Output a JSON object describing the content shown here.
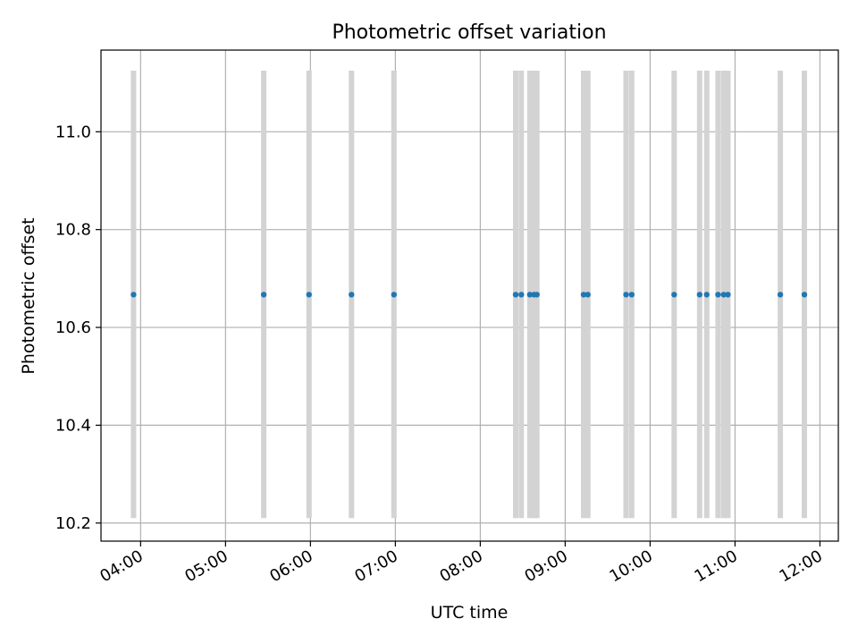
{
  "chart_data": {
    "type": "scatter",
    "title": "Photometric offset variation",
    "xlabel": "UTC time",
    "ylabel": "Photometric offset",
    "grid": true,
    "x_tick_labels": [
      "04:00",
      "05:00",
      "06:00",
      "07:00",
      "08:00",
      "09:00",
      "10:00",
      "11:00",
      "12:00"
    ],
    "y_tick_labels": [
      "10.2",
      "10.4",
      "10.6",
      "10.8",
      "11.0"
    ],
    "xlim": [
      "03:32",
      "12:13"
    ],
    "ylim": [
      10.163,
      11.167
    ],
    "marker_color": "#1f77b4",
    "errorbar_color": "#d3d3d3",
    "series": [
      {
        "x": [
          "03:55",
          "05:27",
          "05:59",
          "06:29",
          "06:59",
          "08:25",
          "08:29",
          "08:35",
          "08:38",
          "08:40",
          "09:13",
          "09:16",
          "09:43",
          "09:47",
          "10:17",
          "10:35",
          "10:40",
          "10:48",
          "10:52",
          "10:55",
          "11:32",
          "11:49"
        ],
        "y": [
          10.667,
          10.667,
          10.667,
          10.667,
          10.667,
          10.667,
          10.667,
          10.667,
          10.667,
          10.667,
          10.667,
          10.667,
          10.667,
          10.667,
          10.667,
          10.667,
          10.667,
          10.667,
          10.667,
          10.667,
          10.667,
          10.667
        ],
        "y_low": 10.21,
        "y_high": 11.125
      }
    ]
  }
}
